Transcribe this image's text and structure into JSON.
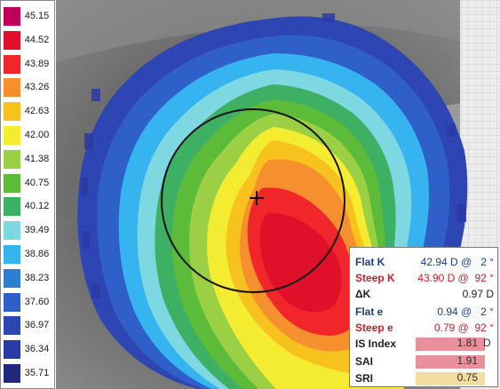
{
  "scale": {
    "entries": [
      {
        "value": "45.15",
        "color": "#c0005a"
      },
      {
        "value": "44.52",
        "color": "#e0102a"
      },
      {
        "value": "43.89",
        "color": "#f0262a"
      },
      {
        "value": "43.26",
        "color": "#f6902e"
      },
      {
        "value": "42.63",
        "color": "#f8c21e"
      },
      {
        "value": "42.00",
        "color": "#f4ec30"
      },
      {
        "value": "41.38",
        "color": "#9cd044"
      },
      {
        "value": "40.75",
        "color": "#5cbc3a"
      },
      {
        "value": "40.12",
        "color": "#3eb064"
      },
      {
        "value": "39.49",
        "color": "#7ed8e2"
      },
      {
        "value": "38.86",
        "color": "#36b4f0"
      },
      {
        "value": "38.23",
        "color": "#2c7fd0"
      },
      {
        "value": "37.60",
        "color": "#2f5fc8"
      },
      {
        "value": "36.97",
        "color": "#2e46b4"
      },
      {
        "value": "36.34",
        "color": "#2a3aa6"
      },
      {
        "value": "35.71",
        "color": "#22287e"
      }
    ]
  },
  "panel": {
    "flat_k": {
      "label": "Flat K",
      "value": "42.94 D @   2 °"
    },
    "steep_k": {
      "label": "Steep K",
      "value": "43.90 D @  92 °"
    },
    "delta_k": {
      "label": "ΔK",
      "value": "0.97 D"
    },
    "flat_e": {
      "label": "Flat e",
      "value": "0.94 @   2 °"
    },
    "steep_e": {
      "label": "Steep e",
      "value": "0.79 @  92 °"
    },
    "is_index": {
      "label": "IS Index",
      "value": "1.81",
      "unit": "D",
      "bar_color": "#e8909c"
    },
    "sai": {
      "label": "SAI",
      "value": "1.91",
      "bar_color": "#e8909c"
    },
    "sri": {
      "label": "SRI",
      "value": "0.75",
      "bar_color": "#f2dca0"
    }
  }
}
